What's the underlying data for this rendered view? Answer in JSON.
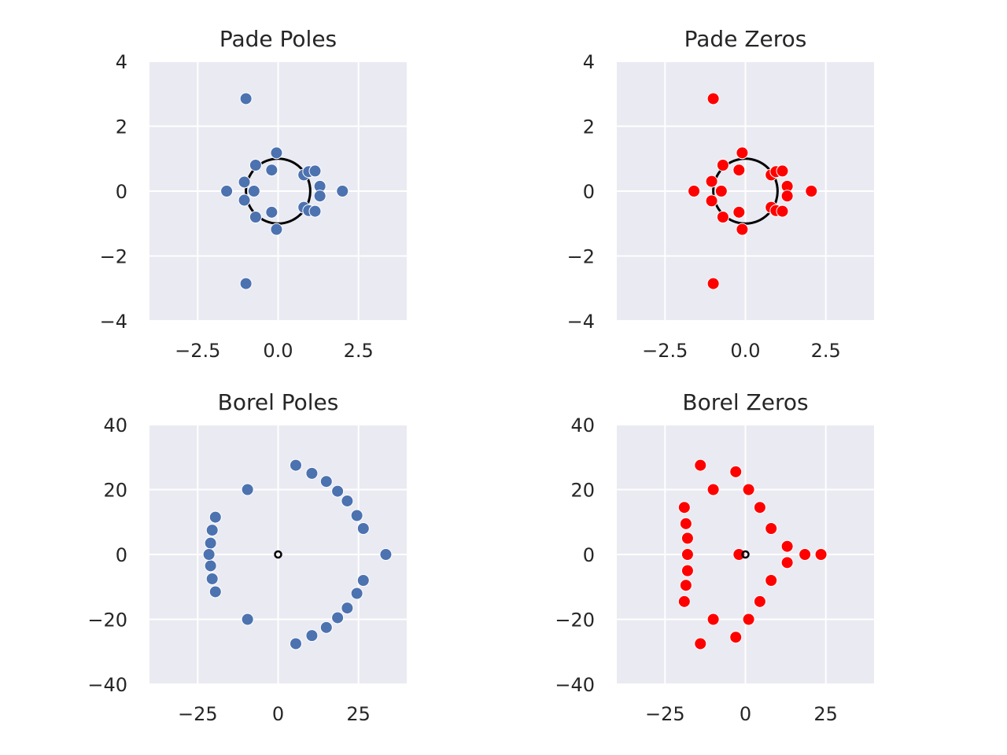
{
  "theme": {
    "panel_bg": "#eaeaf2",
    "grid_color": "#ffffff",
    "blue_marker": "#4c72b0",
    "red_marker": "#ff0000",
    "circle_color": "#000000",
    "text_color": "#262626"
  },
  "chart_data": [
    {
      "type": "scatter",
      "title": "Pade Poles",
      "xlim": [
        -4,
        4
      ],
      "ylim": [
        -4,
        4
      ],
      "xticks": [
        -2.5,
        0.0,
        2.5
      ],
      "xtick_labels": [
        "−2.5",
        "0.0",
        "2.5"
      ],
      "yticks": [
        -4,
        -2,
        0,
        2,
        4
      ],
      "ytick_labels": [
        "−4",
        "−2",
        "0",
        "2",
        "4"
      ],
      "grid": true,
      "marker_color": "#4c72b0",
      "marker_edge": "#ffffff",
      "unit_circle": {
        "shown": true,
        "radius": 1
      },
      "x": [
        -1.0,
        -1.0,
        -0.05,
        -0.05,
        -0.2,
        -0.2,
        -0.7,
        -0.7,
        -1.05,
        -1.05,
        -0.75,
        -1.6,
        0.8,
        0.8,
        0.95,
        0.95,
        1.15,
        1.15,
        1.3,
        1.3,
        2.0
      ],
      "y": [
        2.85,
        -2.85,
        1.18,
        -1.18,
        0.65,
        -0.65,
        0.8,
        -0.8,
        0.28,
        -0.28,
        0.0,
        0.0,
        0.5,
        -0.5,
        0.6,
        -0.6,
        0.62,
        -0.62,
        0.15,
        -0.15,
        0.0
      ]
    },
    {
      "type": "scatter",
      "title": "Pade Zeros",
      "xlim": [
        -4,
        4
      ],
      "ylim": [
        -4,
        4
      ],
      "xticks": [
        -2.5,
        0.0,
        2.5
      ],
      "xtick_labels": [
        "−2.5",
        "0.0",
        "2.5"
      ],
      "yticks": [
        -4,
        -2,
        0,
        2,
        4
      ],
      "ytick_labels": [
        "−4",
        "−2",
        "0",
        "2",
        "4"
      ],
      "grid": true,
      "marker_color": "#ff0000",
      "marker_edge": "#ffffff",
      "unit_circle": {
        "shown": true,
        "radius": 1
      },
      "x": [
        -1.0,
        -1.0,
        -0.1,
        -0.1,
        -0.2,
        -0.2,
        -0.7,
        -0.7,
        -1.05,
        -1.05,
        -0.75,
        -1.6,
        0.8,
        0.8,
        0.95,
        0.95,
        1.15,
        1.15,
        1.3,
        1.3,
        2.05
      ],
      "y": [
        2.85,
        -2.85,
        1.18,
        -1.18,
        0.65,
        -0.65,
        0.8,
        -0.8,
        0.3,
        -0.3,
        0.0,
        0.0,
        0.5,
        -0.5,
        0.6,
        -0.6,
        0.62,
        -0.62,
        0.15,
        -0.15,
        0.0
      ]
    },
    {
      "type": "scatter",
      "title": "Borel Poles",
      "xlim": [
        -40,
        40
      ],
      "ylim": [
        -40,
        40
      ],
      "xticks": [
        -25,
        0,
        25
      ],
      "xtick_labels": [
        "−25",
        "0",
        "25"
      ],
      "yticks": [
        -40,
        -20,
        0,
        20,
        40
      ],
      "ytick_labels": [
        "−40",
        "−20",
        "0",
        "20",
        "40"
      ],
      "grid": true,
      "marker_color": "#4c72b0",
      "marker_edge": "#ffffff",
      "origin_marker": {
        "shown": true,
        "x": 0,
        "y": 0
      },
      "x": [
        5.5,
        5.5,
        10.5,
        10.5,
        15.0,
        15.0,
        18.5,
        18.5,
        21.5,
        21.5,
        24.5,
        24.5,
        26.5,
        26.5,
        33.5,
        -9.5,
        -9.5,
        -19.5,
        -19.5,
        -20.5,
        -20.5,
        -21.0,
        -21.0,
        -21.5
      ],
      "y": [
        27.5,
        -27.5,
        25.0,
        -25.0,
        22.5,
        -22.5,
        19.5,
        -19.5,
        16.5,
        -16.5,
        12.0,
        -12.0,
        8.0,
        -8.0,
        0.0,
        20.0,
        -20.0,
        11.5,
        -11.5,
        7.5,
        -7.5,
        3.5,
        -3.5,
        0.0
      ]
    },
    {
      "type": "scatter",
      "title": "Borel Zeros",
      "xlim": [
        -40,
        40
      ],
      "ylim": [
        -40,
        40
      ],
      "xticks": [
        -25,
        0,
        25
      ],
      "xtick_labels": [
        "−25",
        "0",
        "25"
      ],
      "yticks": [
        -40,
        -20,
        0,
        20,
        40
      ],
      "ytick_labels": [
        "−40",
        "−20",
        "0",
        "20",
        "40"
      ],
      "grid": true,
      "marker_color": "#ff0000",
      "marker_edge": "#ffffff",
      "origin_marker": {
        "shown": true,
        "x": 0,
        "y": 0
      },
      "x": [
        -14.0,
        -14.0,
        -10.0,
        -10.0,
        -19.0,
        -19.0,
        -18.5,
        -18.5,
        -18.0,
        -18.0,
        -18.0,
        -18.0,
        -18.0,
        -3.0,
        -3.0,
        1.0,
        1.0,
        4.5,
        4.5,
        8.0,
        8.0,
        13.0,
        13.0,
        18.5,
        23.5,
        -2.0
      ],
      "y": [
        27.5,
        -27.5,
        20.0,
        -20.0,
        14.5,
        -14.5,
        9.5,
        -9.5,
        5.0,
        -5.0,
        0.0,
        -5.0,
        5.0,
        25.5,
        -25.5,
        20.0,
        -20.0,
        14.5,
        -14.5,
        8.0,
        -8.0,
        2.5,
        -2.5,
        0.0,
        0.0,
        0.0
      ]
    }
  ]
}
